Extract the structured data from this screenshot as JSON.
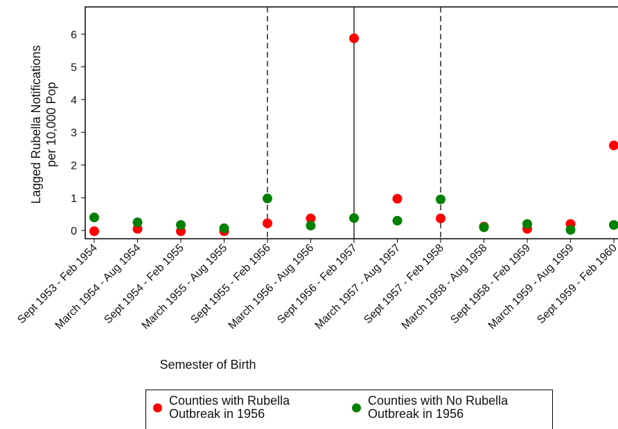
{
  "chart_data": {
    "type": "scatter",
    "y_label": [
      "Lagged Rubella Notifications",
      "per 10,000 Pop"
    ],
    "x_label": "Semester of Birth",
    "categories": [
      "Sept 1953 - Feb 1954",
      "March 1954 - Aug 1954",
      "Sept 1954 - Feb 1955",
      "March 1955 - Aug 1955",
      "Sept 1955 - Feb 1956",
      "March 1956 - Aug 1956",
      "Sept 1956 - Feb 1957",
      "March 1957 - Aug 1957",
      "Sept 1957 - Feb 1958",
      "March 1958 - Aug 1958",
      "Sept 1958 - Feb 1959",
      "March 1959 - Aug 1959",
      "Sept 1959 - Feb 1960"
    ],
    "series": [
      {
        "name": "Counties with Rubella Outbreak in 1956",
        "color": "#ff0000",
        "values": [
          -0.02,
          0.05,
          -0.02,
          -0.02,
          0.22,
          0.37,
          5.87,
          0.97,
          0.37,
          0.12,
          0.05,
          0.2,
          2.6
        ]
      },
      {
        "name": "Counties with No Rubella Outbreak in 1956",
        "color": "#008000",
        "values": [
          0.4,
          0.25,
          0.17,
          0.07,
          0.98,
          0.15,
          0.38,
          0.3,
          0.95,
          0.1,
          0.2,
          0.02,
          0.17
        ]
      }
    ],
    "reference_lines": [
      {
        "category": "Sept 1955 - Feb 1956",
        "style": "dashed"
      },
      {
        "category": "Sept 1956 - Feb 1957",
        "style": "solid"
      },
      {
        "category": "Sept 1957 - Feb 1958",
        "style": "dashed"
      }
    ],
    "ylim": [
      -0.25,
      6.83
    ],
    "yticks": [
      0,
      1,
      2,
      3,
      4,
      5,
      6
    ]
  }
}
